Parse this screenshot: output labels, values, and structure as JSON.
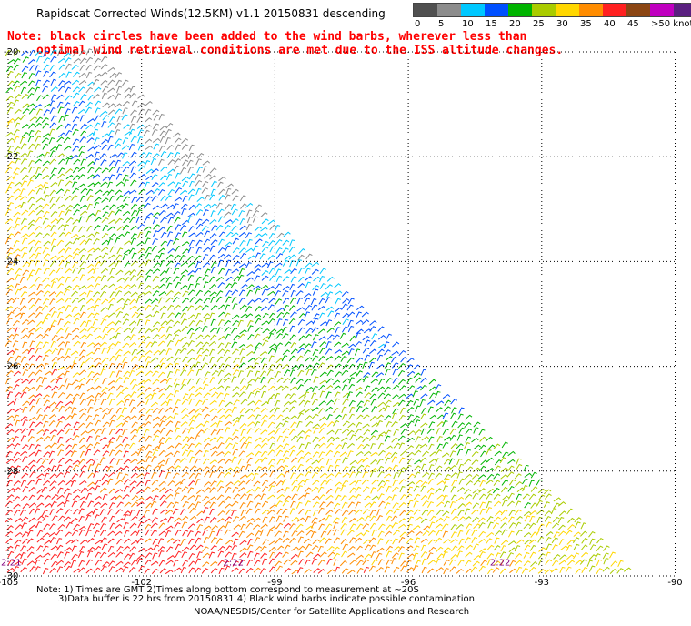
{
  "title": "Rapidscat Corrected Winds(12.5KM) v1.1 20150831 descending",
  "note_line1": "Note: black circles have been added to the wind barbs, wherever less than",
  "note_line2": "optimal wind retrieval conditions are met due to the ISS altitude changes.",
  "legend": {
    "labels": [
      "0",
      "5",
      "10",
      "15",
      "20",
      "25",
      "30",
      "35",
      "40",
      "45",
      ">50 knots"
    ],
    "colors": [
      "#505050",
      "#8c8c8c",
      "#00c8ff",
      "#0050ff",
      "#00b400",
      "#aacc00",
      "#ffd700",
      "#ff8c00",
      "#ff2020",
      "#8b4513",
      "#c000c0",
      "#5a2080"
    ]
  },
  "axes": {
    "lon_labels": [
      "-105",
      "-102",
      "-99",
      "-96",
      "-93",
      "-90"
    ],
    "lat_labels": [
      "-20",
      "-22",
      "-24",
      "-26",
      "-28",
      "-30"
    ]
  },
  "time_labels": [
    "2:21",
    "2:22",
    "2:22"
  ],
  "footer": {
    "line1": "Note: 1) Times are GMT 2)Times along bottom correspond to measurement at ~20S",
    "line2": "3)Data buffer is 22 hrs from 20150831 4) Black wind barbs indicate possible contamination",
    "line3": "NOAA/NESDIS/Center for Satellite Applications and Research"
  }
}
